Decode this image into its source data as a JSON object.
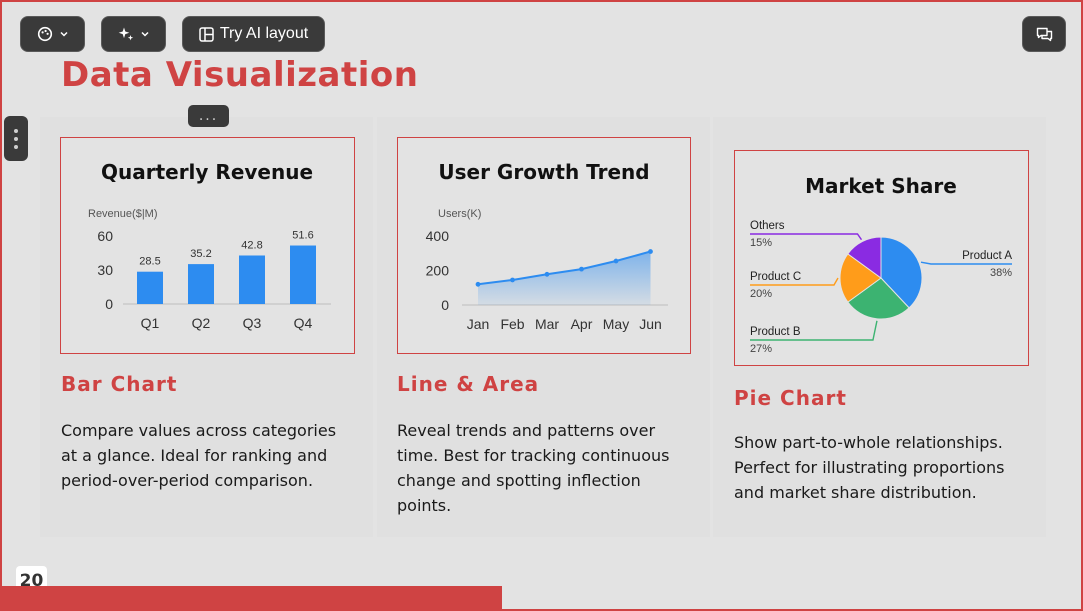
{
  "toolbar": {
    "theme_icon": "palette-icon",
    "ai_icon": "sparkles-icon",
    "try_ai_label": "Try AI layout",
    "comment_icon": "comments-icon"
  },
  "slide": {
    "title": "Data Visualization",
    "page_number": "20",
    "more_label": "..."
  },
  "cards": [
    {
      "heading": "Bar Chart",
      "description": "Compare values across categories at a glance. Ideal for ranking and period-over-period comparison."
    },
    {
      "heading": "Line & Area",
      "description": "Reveal trends and patterns over time. Best for tracking continuous change and spotting inflection points."
    },
    {
      "heading": "Pie Chart",
      "description": "Show part-to-whole relationships. Perfect for illustrating proportions and market share distribution."
    }
  ],
  "chart_data": [
    {
      "type": "bar",
      "title": "Quarterly Revenue",
      "ylabel": "Revenue($|M)",
      "categories": [
        "Q1",
        "Q2",
        "Q3",
        "Q4"
      ],
      "values": [
        28.5,
        35.2,
        42.8,
        51.6
      ],
      "data_labels": [
        "28.5",
        "35.2",
        "42.8",
        "51.6"
      ],
      "yticks": [
        "60",
        "30",
        "0"
      ],
      "ylim": [
        0,
        60
      ],
      "color": "#2d8cf0"
    },
    {
      "type": "line",
      "title": "User Growth Trend",
      "ylabel": "Users(K)",
      "categories": [
        "Jan",
        "Feb",
        "Mar",
        "Apr",
        "May",
        "Jun"
      ],
      "values": [
        120,
        145,
        178,
        208,
        255,
        310
      ],
      "yticks": [
        "400",
        "200",
        "0"
      ],
      "ylim": [
        0,
        400
      ],
      "area": true,
      "color": "#2d8cf0"
    },
    {
      "type": "pie",
      "title": "Market Share",
      "slices": [
        {
          "label": "Product A",
          "pct_label": "38%",
          "value": 38,
          "color": "#2d8cf0"
        },
        {
          "label": "Product B",
          "pct_label": "27%",
          "value": 27,
          "color": "#3cb371"
        },
        {
          "label": "Product C",
          "pct_label": "20%",
          "value": 20,
          "color": "#ff9c1a"
        },
        {
          "label": "Others",
          "pct_label": "15%",
          "value": 15,
          "color": "#8a2be2"
        }
      ]
    }
  ]
}
